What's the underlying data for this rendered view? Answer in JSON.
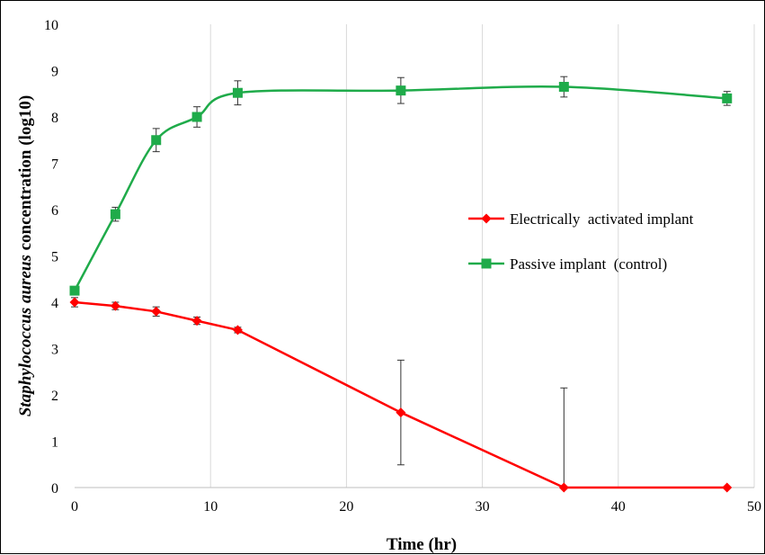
{
  "chart_data": {
    "type": "line",
    "title": "",
    "xlabel": "Time (hr)",
    "ylabel_italic": "Staphylococcus aureus",
    "ylabel_rest": " concentration (log10)",
    "xlim": [
      0,
      50
    ],
    "ylim": [
      0,
      10
    ],
    "x_ticks": [
      0,
      10,
      20,
      30,
      40,
      50
    ],
    "y_ticks": [
      0,
      1,
      2,
      3,
      4,
      5,
      6,
      7,
      8,
      9,
      10
    ],
    "grid": "vertical",
    "legend_position": "right-middle",
    "series": [
      {
        "name": "Electrically  activated implant",
        "color": "#ff0000",
        "marker": "diamond",
        "smooth": false,
        "points": [
          {
            "x": 0,
            "y": 4.0,
            "err": 0.1
          },
          {
            "x": 3,
            "y": 3.92,
            "err": 0.08
          },
          {
            "x": 6,
            "y": 3.8,
            "err": 0.1
          },
          {
            "x": 9,
            "y": 3.6,
            "err": 0.08
          },
          {
            "x": 12,
            "y": 3.4,
            "err": 0.06
          },
          {
            "x": 24,
            "y": 1.62,
            "err": 1.13
          },
          {
            "x": 36,
            "y": 0.0,
            "err": 2.15
          },
          {
            "x": 48,
            "y": 0.0,
            "err": 0
          }
        ]
      },
      {
        "name": "Passive implant  (control)",
        "color": "#1fab4a",
        "marker": "square",
        "smooth": true,
        "points": [
          {
            "x": 0,
            "y": 4.25,
            "err": 0.08
          },
          {
            "x": 3,
            "y": 5.9,
            "err": 0.15
          },
          {
            "x": 6,
            "y": 7.5,
            "err": 0.25
          },
          {
            "x": 9,
            "y": 8.0,
            "err": 0.22
          },
          {
            "x": 12,
            "y": 8.52,
            "err": 0.26
          },
          {
            "x": 24,
            "y": 8.57,
            "err": 0.28
          },
          {
            "x": 36,
            "y": 8.65,
            "err": 0.22
          },
          {
            "x": 48,
            "y": 8.4,
            "err": 0.15
          }
        ]
      }
    ]
  }
}
